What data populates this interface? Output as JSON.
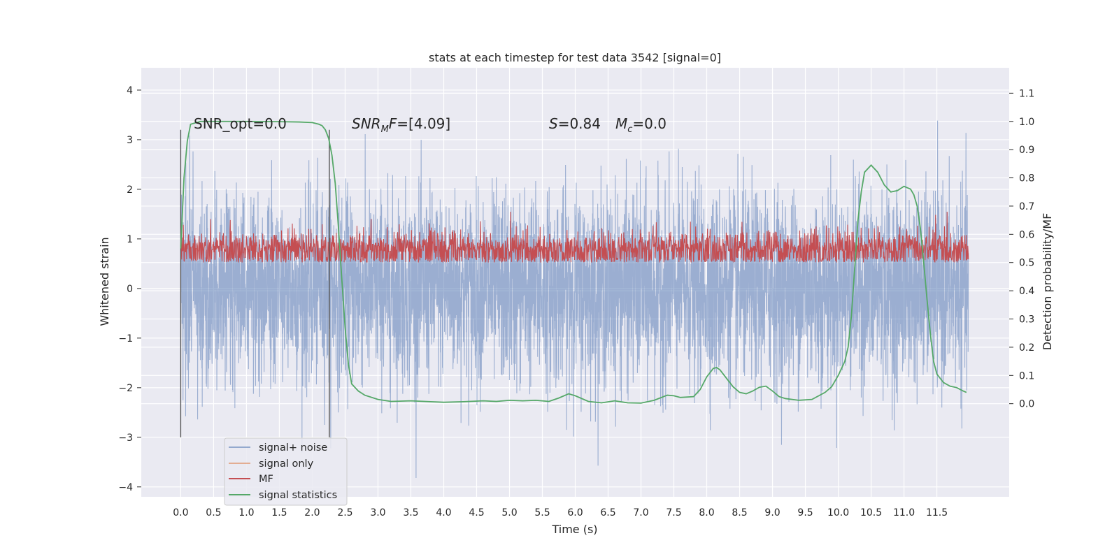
{
  "chart_data": {
    "type": "line",
    "title": "stats at each timestep for test data 3542 [signal=0]",
    "xlabel": "Time (s)",
    "ylabel": "Whitened strain",
    "y2label": "Detection probability/MF",
    "xlim": [
      -0.6,
      12.6
    ],
    "ylim": [
      -4.2,
      4.45
    ],
    "y2lim": [
      -0.33,
      1.19
    ],
    "xticks": [
      0.0,
      0.5,
      1.0,
      1.5,
      2.0,
      2.5,
      3.0,
      3.5,
      4.0,
      4.5,
      5.0,
      5.5,
      6.0,
      6.5,
      7.0,
      7.5,
      8.0,
      8.5,
      9.0,
      9.5,
      10.0,
      10.5,
      11.0,
      11.5
    ],
    "xtick_labels": [
      "0.0",
      "0.5",
      "1.0",
      "1.5",
      "2.0",
      "2.5",
      "3.0",
      "3.5",
      "4.0",
      "4.5",
      "5.0",
      "5.5",
      "6.0",
      "6.5",
      "7.0",
      "7.5",
      "8.0",
      "8.5",
      "9.0",
      "9.5",
      "10.0",
      "10.5",
      "11.0",
      "11.5"
    ],
    "yticks": [
      -4,
      -3,
      -2,
      -1,
      0,
      1,
      2,
      3,
      4
    ],
    "ytick_labels": [
      "−4",
      "−3",
      "−2",
      "−1",
      "0",
      "1",
      "2",
      "3",
      "4"
    ],
    "y2ticks": [
      0.0,
      0.1,
      0.2,
      0.3,
      0.4,
      0.5,
      0.6,
      0.7,
      0.8,
      0.9,
      1.0,
      1.1
    ],
    "y2tick_labels": [
      "0.0",
      "0.1",
      "0.2",
      "0.3",
      "0.4",
      "0.5",
      "0.6",
      "0.7",
      "0.8",
      "0.9",
      "1.0",
      "1.1"
    ],
    "grid": true,
    "legend_position": "bottom-left",
    "vlines": [
      {
        "x": 0.0,
        "ymin": -3.0,
        "ymax": 3.2
      },
      {
        "x": 2.26,
        "ymin": -3.0,
        "ymax": 3.2
      }
    ],
    "annotations": [
      {
        "id": "snr_opt",
        "text": "SNR_opt=0.0",
        "x": 0.2,
        "y": 3.2
      },
      {
        "id": "snr_mf",
        "text": "=[4.09]",
        "x": 2.6,
        "y": 3.2
      },
      {
        "id": "s",
        "text": "=0.84",
        "x": 5.6,
        "y": 3.2
      },
      {
        "id": "mc",
        "text": "=0.0",
        "x": 6.6,
        "y": 3.2
      }
    ],
    "series": [
      {
        "name": "signal+ noise",
        "color": "#4c72b0",
        "axis": "left",
        "x_range": [
          0.0,
          11.98
        ],
        "envelope_min": [
          -1.9,
          -2.9
        ],
        "envelope_max": [
          2.9,
          3.9
        ],
        "values": []
      },
      {
        "name": "signal only",
        "color": "#dd8452",
        "axis": "left",
        "values": []
      },
      {
        "name": "MF",
        "color": "#c44e52",
        "axis": "right",
        "x_range": [
          0.0,
          11.98
        ],
        "envelope_min": [
          0.48,
          0.5
        ],
        "envelope_max": [
          0.62,
          0.68
        ],
        "values": []
      },
      {
        "name": "signal statistics",
        "color": "#55a868",
        "axis": "right",
        "x": [
          0.0,
          0.05,
          0.1,
          0.15,
          0.3,
          0.6,
          1.0,
          1.5,
          1.8,
          2.0,
          2.1,
          2.15,
          2.2,
          2.25,
          2.3,
          2.35,
          2.4,
          2.45,
          2.5,
          2.55,
          2.6,
          2.7,
          2.8,
          3.0,
          3.2,
          3.5,
          3.8,
          4.0,
          4.3,
          4.6,
          4.8,
          5.0,
          5.2,
          5.4,
          5.6,
          5.75,
          5.9,
          6.0,
          6.2,
          6.4,
          6.6,
          6.8,
          7.0,
          7.2,
          7.4,
          7.5,
          7.6,
          7.8,
          7.9,
          8.0,
          8.1,
          8.15,
          8.2,
          8.3,
          8.4,
          8.5,
          8.6,
          8.7,
          8.8,
          8.9,
          9.0,
          9.1,
          9.2,
          9.4,
          9.6,
          9.8,
          9.9,
          10.0,
          10.1,
          10.15,
          10.2,
          10.25,
          10.3,
          10.35,
          10.4,
          10.5,
          10.6,
          10.7,
          10.8,
          10.9,
          11.0,
          11.1,
          11.15,
          11.2,
          11.25,
          11.3,
          11.35,
          11.4,
          11.45,
          11.5,
          11.6,
          11.7,
          11.8,
          11.9,
          11.95
        ],
        "values": [
          0.55,
          0.8,
          0.93,
          0.99,
          1.0,
          1.0,
          1.0,
          0.999,
          0.998,
          0.996,
          0.99,
          0.985,
          0.97,
          0.94,
          0.88,
          0.78,
          0.62,
          0.44,
          0.27,
          0.14,
          0.07,
          0.045,
          0.03,
          0.015,
          0.008,
          0.01,
          0.007,
          0.005,
          0.007,
          0.01,
          0.008,
          0.012,
          0.01,
          0.012,
          0.008,
          0.02,
          0.035,
          0.028,
          0.008,
          0.003,
          0.01,
          0.003,
          0.002,
          0.012,
          0.03,
          0.028,
          0.022,
          0.025,
          0.05,
          0.095,
          0.125,
          0.128,
          0.12,
          0.09,
          0.06,
          0.04,
          0.035,
          0.045,
          0.058,
          0.062,
          0.045,
          0.025,
          0.018,
          0.012,
          0.015,
          0.04,
          0.06,
          0.1,
          0.15,
          0.2,
          0.31,
          0.48,
          0.65,
          0.75,
          0.82,
          0.845,
          0.82,
          0.775,
          0.75,
          0.755,
          0.77,
          0.76,
          0.74,
          0.7,
          0.62,
          0.5,
          0.37,
          0.25,
          0.15,
          0.105,
          0.075,
          0.062,
          0.057,
          0.045,
          0.04
        ]
      }
    ]
  }
}
